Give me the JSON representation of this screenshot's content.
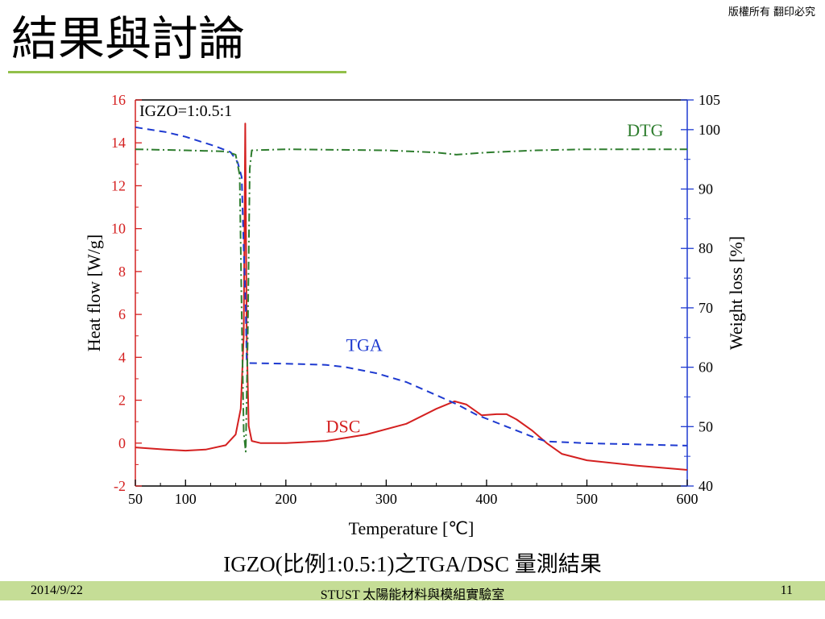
{
  "slide": {
    "title": "結果與討論",
    "copyright": "版權所有 翻印必究",
    "caption": "IGZO(比例1:0.5:1)之TGA/DSC 量測結果"
  },
  "footer": {
    "date": "2014/9/22",
    "lab": "STUST 太陽能材料與模組實驗室",
    "page": "11"
  },
  "colors": {
    "title_rule": "#92c04a",
    "footer_bar": "#c5dd96",
    "dsc": "#d42020",
    "tga": "#1e3ad0",
    "dtg": "#2e7d2e",
    "axis_left": "#d42020",
    "axis_right": "#1e3ad0"
  },
  "chart_data": {
    "type": "line",
    "annotation": "IGZO=1:0.5:1",
    "xlabel": "Temperature [℃]",
    "ylabel": "Heat flow [W/g]",
    "y2label": "Weight loss [%]",
    "xlim": [
      50,
      600
    ],
    "ylim": [
      -2,
      16
    ],
    "y2lim": [
      40,
      105
    ],
    "xticks": [
      50,
      100,
      200,
      300,
      400,
      500,
      600
    ],
    "yticks": [
      -2,
      0,
      2,
      4,
      6,
      8,
      10,
      12,
      14,
      16
    ],
    "y2ticks": [
      40,
      50,
      60,
      70,
      80,
      90,
      100,
      105
    ],
    "grid": false,
    "series": [
      {
        "name": "DSC",
        "axis": "left",
        "style": "solid",
        "points": [
          [
            50,
            -0.2
          ],
          [
            80,
            -0.3
          ],
          [
            100,
            -0.35
          ],
          [
            120,
            -0.3
          ],
          [
            140,
            -0.1
          ],
          [
            150,
            0.4
          ],
          [
            155,
            1.6
          ],
          [
            158,
            5
          ],
          [
            159.5,
            14.9
          ],
          [
            161,
            5
          ],
          [
            163,
            0.8
          ],
          [
            166,
            0.1
          ],
          [
            175,
            0
          ],
          [
            200,
            0
          ],
          [
            240,
            0.1
          ],
          [
            280,
            0.4
          ],
          [
            320,
            0.9
          ],
          [
            350,
            1.6
          ],
          [
            368,
            1.95
          ],
          [
            380,
            1.8
          ],
          [
            395,
            1.3
          ],
          [
            410,
            1.35
          ],
          [
            420,
            1.35
          ],
          [
            430,
            1.1
          ],
          [
            445,
            0.6
          ],
          [
            460,
            0
          ],
          [
            475,
            -0.5
          ],
          [
            500,
            -0.8
          ],
          [
            550,
            -1.05
          ],
          [
            600,
            -1.25
          ]
        ]
      },
      {
        "name": "TGA",
        "axis": "right",
        "style": "dashed",
        "points": [
          [
            50,
            100.4
          ],
          [
            80,
            99.6
          ],
          [
            100,
            98.8
          ],
          [
            130,
            97.2
          ],
          [
            145,
            96.2
          ],
          [
            152,
            94.5
          ],
          [
            156,
            92
          ],
          [
            158,
            80
          ],
          [
            160,
            70
          ],
          [
            161,
            61
          ],
          [
            163,
            60.7
          ],
          [
            200,
            60.6
          ],
          [
            240,
            60.4
          ],
          [
            260,
            60
          ],
          [
            290,
            59
          ],
          [
            320,
            57.5
          ],
          [
            350,
            55.3
          ],
          [
            370,
            53.8
          ],
          [
            390,
            52
          ],
          [
            420,
            50
          ],
          [
            450,
            48
          ],
          [
            460,
            47.5
          ],
          [
            500,
            47.2
          ],
          [
            550,
            47
          ],
          [
            600,
            46.8
          ]
        ]
      },
      {
        "name": "DTG",
        "axis": "left",
        "style": "dashdot",
        "points": [
          [
            50,
            13.7
          ],
          [
            100,
            13.65
          ],
          [
            140,
            13.6
          ],
          [
            150,
            13.45
          ],
          [
            154,
            12.5
          ],
          [
            156,
            6
          ],
          [
            158,
            0.5
          ],
          [
            160,
            -0.4
          ],
          [
            162,
            5
          ],
          [
            164,
            12.8
          ],
          [
            166,
            13.65
          ],
          [
            200,
            13.7
          ],
          [
            300,
            13.65
          ],
          [
            350,
            13.55
          ],
          [
            370,
            13.45
          ],
          [
            400,
            13.55
          ],
          [
            450,
            13.65
          ],
          [
            500,
            13.7
          ],
          [
            600,
            13.7
          ]
        ]
      }
    ],
    "labels": {
      "DSC": {
        "x": 240,
        "y": 0.5
      },
      "TGA": {
        "x": 260,
        "y": 4.3
      },
      "DTG": {
        "x": 540,
        "y": 14.3
      }
    }
  }
}
